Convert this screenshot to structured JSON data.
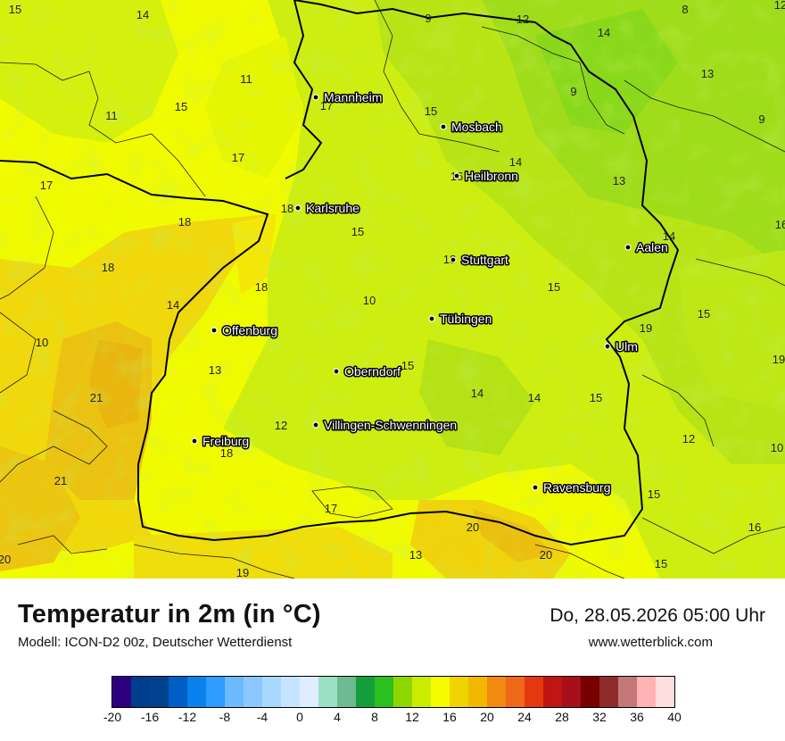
{
  "title": "Temperatur in 2m (in °C)",
  "model": "Modell: ICON-D2 00z, Deutscher Wetterdienst",
  "datetime": "Do, 28.05.2026 05:00 Uhr",
  "website": "www.wetterblick.com",
  "colors": {
    "base_yellow": "#f1fb00",
    "green_light": "#bde816",
    "green_mid": "#8ad81c",
    "orange_light": "#f0d80c",
    "orange": "#ebc211",
    "border": "#000000"
  },
  "cities": [
    {
      "name": "Mannheim"
    },
    {
      "name": "Mosbach"
    },
    {
      "name": "Heilbronn"
    },
    {
      "name": "Karlsruhe"
    },
    {
      "name": "Aalen"
    },
    {
      "name": "Stuttgart"
    },
    {
      "name": "Tübingen"
    },
    {
      "name": "Offenburg"
    },
    {
      "name": "Ulm"
    },
    {
      "name": "Oberndorf"
    },
    {
      "name": "Villingen-Schwenningen"
    },
    {
      "name": "Freiburg"
    },
    {
      "name": "Ravensburg"
    }
  ],
  "values": [
    "15",
    "14",
    "9",
    "12",
    "14",
    "8",
    "12",
    "11",
    "11",
    "15",
    "17",
    "15",
    "9",
    "13",
    "9",
    "17",
    "14",
    "16",
    "17",
    "13",
    "18",
    "18",
    "15",
    "14",
    "18",
    "18",
    "18",
    "15",
    "10",
    "15",
    "14",
    "19",
    "10",
    "19",
    "13",
    "15",
    "16",
    "21",
    "14",
    "14",
    "15",
    "12",
    "10",
    "12",
    "18",
    "21",
    "15",
    "17",
    "20",
    "16",
    "13",
    "20",
    "19",
    "20",
    "15"
  ],
  "legend": {
    "colors": [
      "#2e0080",
      "#003d8c",
      "#00428f",
      "#005fc7",
      "#0a82ee",
      "#2e9cff",
      "#6dbaff",
      "#8cc8ff",
      "#a9d8ff",
      "#c6e4ff",
      "#dfeeff",
      "#9ae0c4",
      "#6dbb93",
      "#149e3c",
      "#2bbf20",
      "#8fd600",
      "#c9ec00",
      "#f7fb00",
      "#f0d400",
      "#f2b800",
      "#f08a10",
      "#f06918",
      "#e63810",
      "#c01515",
      "#a70f1a",
      "#780000",
      "#8f2b2b",
      "#c47777",
      "#ffb3b3",
      "#ffdede"
    ],
    "ticks": [
      "-20",
      "-16",
      "-12",
      "-8",
      "-4",
      "0",
      "4",
      "8",
      "12",
      "16",
      "20",
      "24",
      "28",
      "32",
      "36",
      "40"
    ]
  }
}
